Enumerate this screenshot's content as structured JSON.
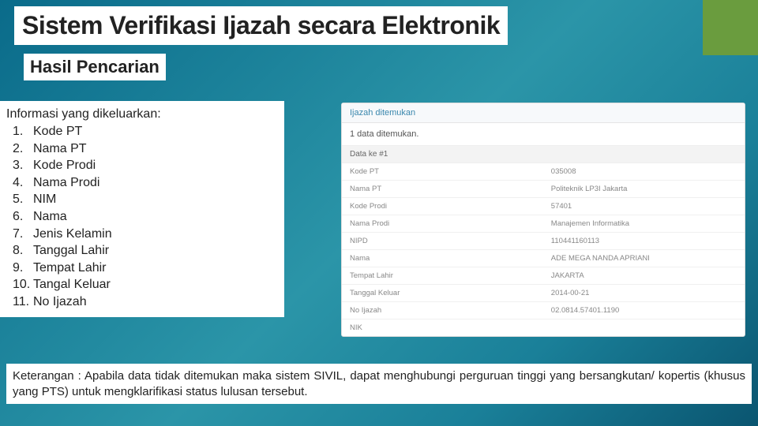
{
  "title": "Sistem Verifikasi Ijazah secara Elektronik",
  "subtitle": "Hasil Pencarian",
  "info": {
    "label": "Informasi yang dikeluarkan:",
    "items": [
      "Kode PT",
      "Nama PT",
      "Kode Prodi",
      "Nama Prodi",
      "NIM",
      "Nama",
      "Jenis Kelamin",
      "Tanggal Lahir",
      "Tempat Lahir",
      "Tangal Keluar",
      "No Ijazah"
    ]
  },
  "panel": {
    "header": "Ijazah ditemukan",
    "found_text": "1 data ditemukan.",
    "data_header": "Data ke #1",
    "rows": [
      {
        "label": "Kode PT",
        "value": "035008"
      },
      {
        "label": "Nama PT",
        "value": "Politeknik LP3I Jakarta"
      },
      {
        "label": "Kode Prodi",
        "value": "57401"
      },
      {
        "label": "Nama Prodi",
        "value": "Manajemen Informatika"
      },
      {
        "label": "NIPD",
        "value": "110441160113"
      },
      {
        "label": "Nama",
        "value": "ADE MEGA NANDA APRIANI"
      },
      {
        "label": "Tempat Lahir",
        "value": "JAKARTA"
      },
      {
        "label": "Tanggal Keluar",
        "value": "2014-00-21"
      },
      {
        "label": "No Ijazah",
        "value": "02.0814.57401.1190"
      },
      {
        "label": "NIK",
        "value": ""
      }
    ]
  },
  "footer": "Keterangan : Apabila data tidak ditemukan maka sistem SIVIL, dapat menghubungi perguruan tinggi yang bersangkutan/ kopertis (khusus yang PTS) untuk mengklarifikasi status lulusan tersebut.",
  "colors": {
    "accent": "#6a9c3e",
    "bg_start": "#0a6b8a",
    "bg_end": "#0a5570"
  }
}
